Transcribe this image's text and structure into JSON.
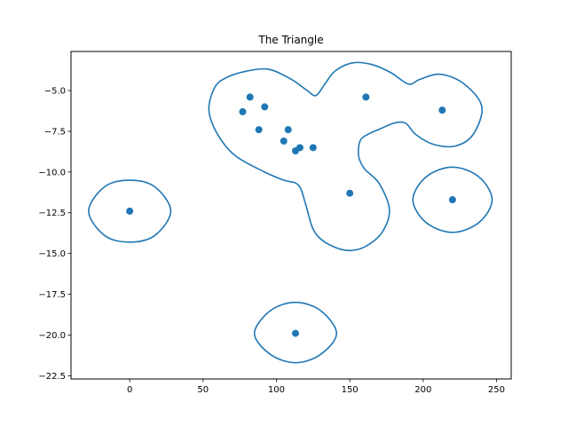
{
  "chart_data": {
    "type": "scatter",
    "title": "The Triangle",
    "xlabel": "",
    "ylabel": "",
    "xlim": [
      -40,
      260
    ],
    "ylim": [
      -22.7,
      -2.6
    ],
    "x_ticks": [
      0,
      50,
      100,
      150,
      200,
      250
    ],
    "y_ticks": [
      -5.0,
      -7.5,
      -10.0,
      -12.5,
      -15.0,
      -17.5,
      -20.0,
      -22.5
    ],
    "grid": false,
    "legend": "none",
    "colors": {
      "accent": "#1f77b4",
      "axis": "#000000",
      "background": "#ffffff"
    },
    "series": [
      {
        "points": [
          [
            0,
            -12.4
          ],
          [
            77,
            -6.3
          ],
          [
            82,
            -5.4
          ],
          [
            88,
            -7.4
          ],
          [
            92,
            -6.0
          ],
          [
            105,
            -8.1
          ],
          [
            108,
            -7.4
          ],
          [
            113,
            -8.7
          ],
          [
            116,
            -8.5
          ],
          [
            125,
            -8.5
          ],
          [
            150,
            -11.3
          ],
          [
            161,
            -5.4
          ],
          [
            213,
            -6.2
          ],
          [
            220,
            -11.7
          ],
          [
            113,
            -19.9
          ]
        ]
      }
    ],
    "contours": [
      {
        "points": [
          [
            80,
            -3.8
          ],
          [
            95,
            -3.7
          ],
          [
            110,
            -4.3
          ],
          [
            121,
            -5.0
          ],
          [
            127,
            -5.3
          ],
          [
            133,
            -4.6
          ],
          [
            140,
            -3.8
          ],
          [
            152,
            -3.3
          ],
          [
            165,
            -3.4
          ],
          [
            178,
            -3.9
          ],
          [
            190,
            -4.6
          ],
          [
            198,
            -4.3
          ],
          [
            212,
            -4.0
          ],
          [
            228,
            -4.6
          ],
          [
            240,
            -6.0
          ],
          [
            234,
            -7.7
          ],
          [
            222,
            -8.4
          ],
          [
            207,
            -8.3
          ],
          [
            195,
            -7.7
          ],
          [
            188,
            -7.0
          ],
          [
            180,
            -7.0
          ],
          [
            172,
            -7.3
          ],
          [
            162,
            -7.7
          ],
          [
            157,
            -8.1
          ],
          [
            156,
            -9.0
          ],
          [
            160,
            -9.8
          ],
          [
            170,
            -10.7
          ],
          [
            177,
            -12.3
          ],
          [
            172,
            -13.7
          ],
          [
            160,
            -14.6
          ],
          [
            147,
            -14.8
          ],
          [
            133,
            -14.3
          ],
          [
            125,
            -13.5
          ],
          [
            120,
            -12.0
          ],
          [
            115,
            -10.8
          ],
          [
            105,
            -10.5
          ],
          [
            92,
            -10.0
          ],
          [
            72,
            -9.0
          ],
          [
            60,
            -7.7
          ],
          [
            54,
            -6.2
          ],
          [
            58,
            -4.8
          ],
          [
            66,
            -4.2
          ]
        ]
      },
      {
        "points": [
          [
            0,
            -10.5
          ],
          [
            17,
            -10.9
          ],
          [
            28,
            -12.4
          ],
          [
            17,
            -13.9
          ],
          [
            0,
            -14.3
          ],
          [
            -17,
            -13.9
          ],
          [
            -28,
            -12.4
          ],
          [
            -17,
            -10.9
          ]
        ]
      },
      {
        "points": [
          [
            220,
            -9.7
          ],
          [
            238,
            -10.3
          ],
          [
            247,
            -11.7
          ],
          [
            238,
            -13.1
          ],
          [
            220,
            -13.7
          ],
          [
            202,
            -13.1
          ],
          [
            193,
            -11.7
          ],
          [
            202,
            -10.3
          ]
        ]
      },
      {
        "points": [
          [
            113,
            -18.0
          ],
          [
            130,
            -18.5
          ],
          [
            141,
            -19.9
          ],
          [
            130,
            -21.2
          ],
          [
            113,
            -21.7
          ],
          [
            96,
            -21.2
          ],
          [
            85,
            -19.9
          ],
          [
            96,
            -18.5
          ]
        ]
      }
    ]
  }
}
